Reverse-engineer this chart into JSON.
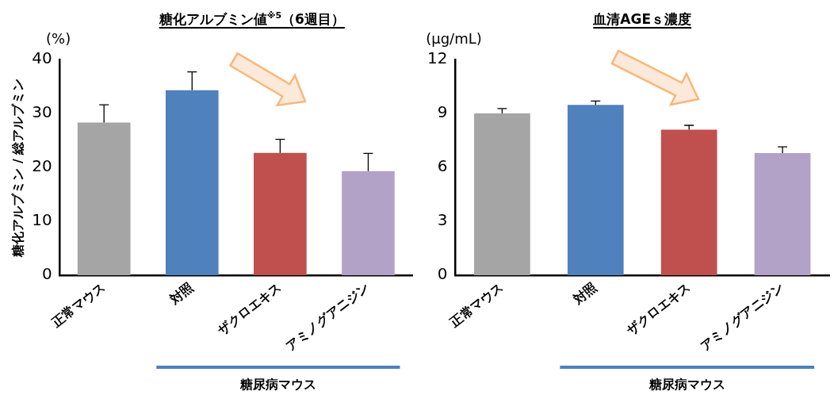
{
  "chart_data": [
    {
      "type": "bar",
      "title": "糖化アルブミン値$^{※5}$（6週目）",
      "ylabel": "糖化アルブミン / 総アルブミン",
      "categories": [
        "正常マウス",
        "対照",
        "ザクロエキス",
        "アミノグアニジン"
      ],
      "values": [
        28.3,
        34.3,
        22.7,
        19.3
      ],
      "colors": [
        "#a5a5a5",
        "#4f81bd",
        "#c0504d",
        "#b2a2c7"
      ],
      "errors": [
        [
          28.3,
          31.6
        ],
        [
          34.3,
          37.7
        ],
        [
          22.7,
          25.2
        ],
        [
          19.3,
          22.6
        ]
      ],
      "ylim": [
        0,
        40
      ],
      "yticks": [
        0,
        10,
        20,
        30,
        40
      ],
      "grid": false,
      "legend": false,
      "annotations": [
        "(%)",
        "糖尿病マウス"
      ]
    },
    {
      "type": "bar",
      "title": "血清AGEｓ濃度",
      "ylabel": "(μg/mL)",
      "categories": [
        "正常マウス",
        "対照",
        "ザクロエキス",
        "アミノグアニジン"
      ],
      "values": [
        9.0,
        9.47,
        8.1,
        6.8
      ],
      "colors": [
        "#a5a5a5",
        "#4f81bd",
        "#c0504d",
        "#b2a2c7"
      ],
      "errors": [
        [
          9.0,
          9.27
        ],
        [
          9.47,
          9.69
        ],
        [
          8.1,
          8.34
        ],
        [
          6.8,
          7.14
        ]
      ],
      "ylim": [
        0,
        12
      ],
      "yticks": [
        0,
        3,
        6,
        9,
        12
      ],
      "grid": false,
      "legend": false,
      "annotations": [
        "糖尿病マウス"
      ]
    }
  ]
}
